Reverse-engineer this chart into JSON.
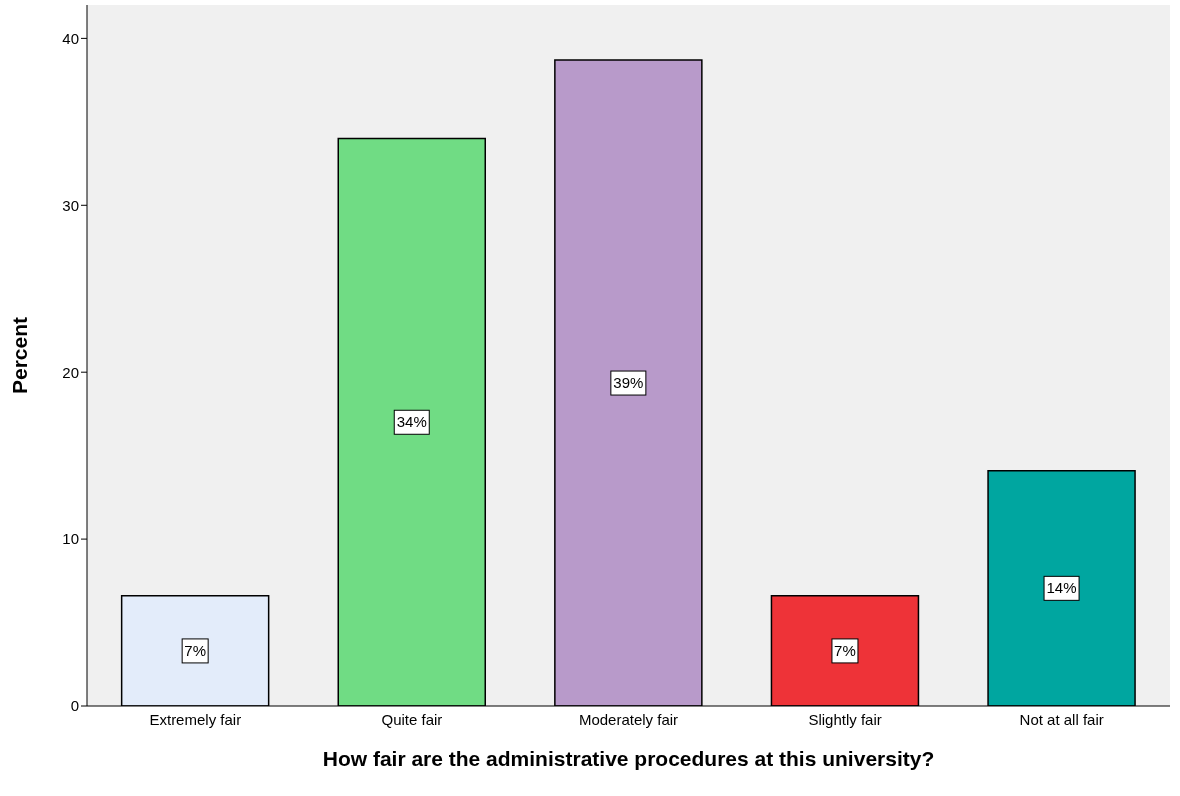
{
  "chart_data": {
    "type": "bar",
    "xlabel": "How fair are the administrative procedures at this university?",
    "ylabel": "Percent",
    "categories": [
      "Extremely fair",
      "Quite fair",
      "Moderately fair",
      "Slightly fair",
      "Not at all fair"
    ],
    "values": [
      6.6,
      34.0,
      38.7,
      6.6,
      14.1
    ],
    "colors": [
      "#e3ecfa",
      "#70dc84",
      "#b89aca",
      "#ee3338",
      "#00a6a0"
    ],
    "value_labels": [
      "7%",
      "34%",
      "39%",
      "7%",
      "14%"
    ],
    "ylim": [
      0,
      42
    ],
    "yticks": [
      0,
      10,
      20,
      30,
      40
    ],
    "grid": false
  }
}
